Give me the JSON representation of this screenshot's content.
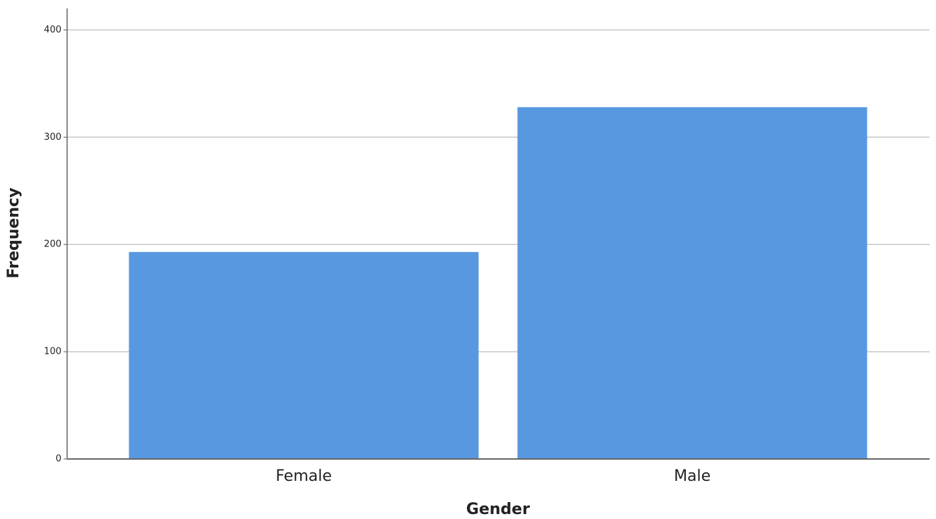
{
  "chart_data": {
    "type": "bar",
    "x_label": "Gender",
    "y_label": "Frequency",
    "categories": [
      "Female",
      "Male"
    ],
    "values": [
      193,
      328
    ],
    "color": "#5898e0",
    "ylim": [
      0,
      420
    ],
    "yticks": [
      0,
      100,
      200,
      300,
      400
    ],
    "grid": true
  }
}
